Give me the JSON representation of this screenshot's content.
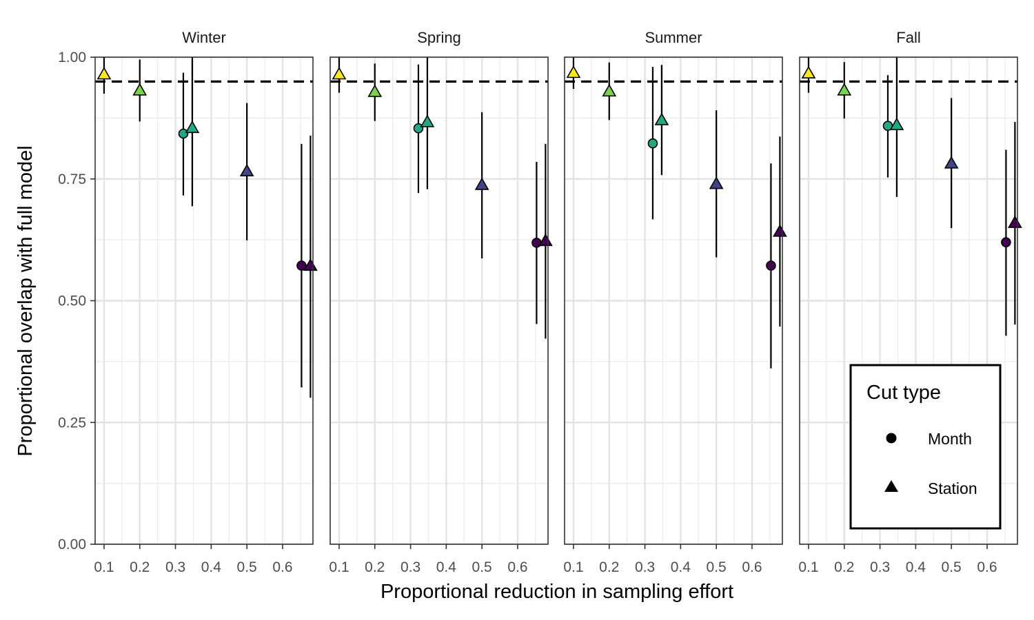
{
  "chart_data": {
    "type": "scatter",
    "xlabel": "Proportional reduction in sampling effort",
    "ylabel": "Proportional overlap with full model",
    "xlim": [
      0.075,
      0.685
    ],
    "ylim": [
      0,
      1
    ],
    "x_ticks": [
      "0.1",
      "0.2",
      "0.3",
      "0.4",
      "0.5",
      "0.6"
    ],
    "x_tick_values": [
      0.1,
      0.2,
      0.3,
      0.4,
      0.5,
      0.6
    ],
    "y_ticks": [
      "0.00",
      "0.25",
      "0.50",
      "0.75",
      "1.00"
    ],
    "y_tick_values": [
      0,
      0.25,
      0.5,
      0.75,
      1.0
    ],
    "reference_line": {
      "y": 0.95,
      "style": "dashed"
    },
    "grid": true,
    "legend": {
      "title": "Cut type",
      "position": "bottom-right",
      "entries": [
        {
          "label": "Month",
          "shape": "circle"
        },
        {
          "label": "Station",
          "shape": "triangle"
        }
      ]
    },
    "colors": {
      "0.1": "#FDE725",
      "0.2": "#7AD151",
      "0.33": "#22A884",
      "0.5": "#414487",
      "0.67": "#440154"
    },
    "panels": [
      {
        "name": "Winter",
        "points": [
          {
            "cut": "Station",
            "x": 0.1,
            "y": 0.965,
            "lo": 0.925,
            "hi": 1.0
          },
          {
            "cut": "Station",
            "x": 0.2,
            "y": 0.932,
            "lo": 0.868,
            "hi": 0.995
          },
          {
            "cut": "Month",
            "x": 0.322,
            "y": 0.843,
            "lo": 0.716,
            "hi": 0.968
          },
          {
            "cut": "Station",
            "x": 0.347,
            "y": 0.855,
            "lo": 0.694,
            "hi": 1.0
          },
          {
            "cut": "Station",
            "x": 0.5,
            "y": 0.766,
            "lo": 0.624,
            "hi": 0.906
          },
          {
            "cut": "Month",
            "x": 0.653,
            "y": 0.572,
            "lo": 0.322,
            "hi": 0.822
          },
          {
            "cut": "Station",
            "x": 0.678,
            "y": 0.572,
            "lo": 0.301,
            "hi": 0.839
          }
        ]
      },
      {
        "name": "Spring",
        "points": [
          {
            "cut": "Station",
            "x": 0.1,
            "y": 0.965,
            "lo": 0.927,
            "hi": 1.0
          },
          {
            "cut": "Station",
            "x": 0.2,
            "y": 0.929,
            "lo": 0.869,
            "hi": 0.987
          },
          {
            "cut": "Month",
            "x": 0.322,
            "y": 0.854,
            "lo": 0.721,
            "hi": 0.985
          },
          {
            "cut": "Station",
            "x": 0.347,
            "y": 0.867,
            "lo": 0.729,
            "hi": 1.0
          },
          {
            "cut": "Station",
            "x": 0.5,
            "y": 0.738,
            "lo": 0.587,
            "hi": 0.887
          },
          {
            "cut": "Month",
            "x": 0.653,
            "y": 0.619,
            "lo": 0.452,
            "hi": 0.785
          },
          {
            "cut": "Station",
            "x": 0.678,
            "y": 0.623,
            "lo": 0.422,
            "hi": 0.822
          }
        ]
      },
      {
        "name": "Summer",
        "points": [
          {
            "cut": "Station",
            "x": 0.1,
            "y": 0.968,
            "lo": 0.935,
            "hi": 1.0
          },
          {
            "cut": "Station",
            "x": 0.2,
            "y": 0.93,
            "lo": 0.871,
            "hi": 0.989
          },
          {
            "cut": "Month",
            "x": 0.322,
            "y": 0.823,
            "lo": 0.667,
            "hi": 0.98
          },
          {
            "cut": "Station",
            "x": 0.347,
            "y": 0.871,
            "lo": 0.758,
            "hi": 0.984
          },
          {
            "cut": "Station",
            "x": 0.5,
            "y": 0.74,
            "lo": 0.589,
            "hi": 0.891
          },
          {
            "cut": "Month",
            "x": 0.653,
            "y": 0.572,
            "lo": 0.361,
            "hi": 0.782
          },
          {
            "cut": "Station",
            "x": 0.678,
            "y": 0.642,
            "lo": 0.447,
            "hi": 0.837
          }
        ]
      },
      {
        "name": "Fall",
        "points": [
          {
            "cut": "Station",
            "x": 0.1,
            "y": 0.967,
            "lo": 0.927,
            "hi": 1.0
          },
          {
            "cut": "Station",
            "x": 0.2,
            "y": 0.932,
            "lo": 0.874,
            "hi": 0.99
          },
          {
            "cut": "Month",
            "x": 0.322,
            "y": 0.859,
            "lo": 0.753,
            "hi": 0.963
          },
          {
            "cut": "Station",
            "x": 0.347,
            "y": 0.861,
            "lo": 0.713,
            "hi": 1.0
          },
          {
            "cut": "Station",
            "x": 0.5,
            "y": 0.782,
            "lo": 0.649,
            "hi": 0.916
          },
          {
            "cut": "Month",
            "x": 0.653,
            "y": 0.62,
            "lo": 0.428,
            "hi": 0.81
          },
          {
            "cut": "Station",
            "x": 0.678,
            "y": 0.66,
            "lo": 0.451,
            "hi": 0.867
          }
        ]
      }
    ]
  }
}
